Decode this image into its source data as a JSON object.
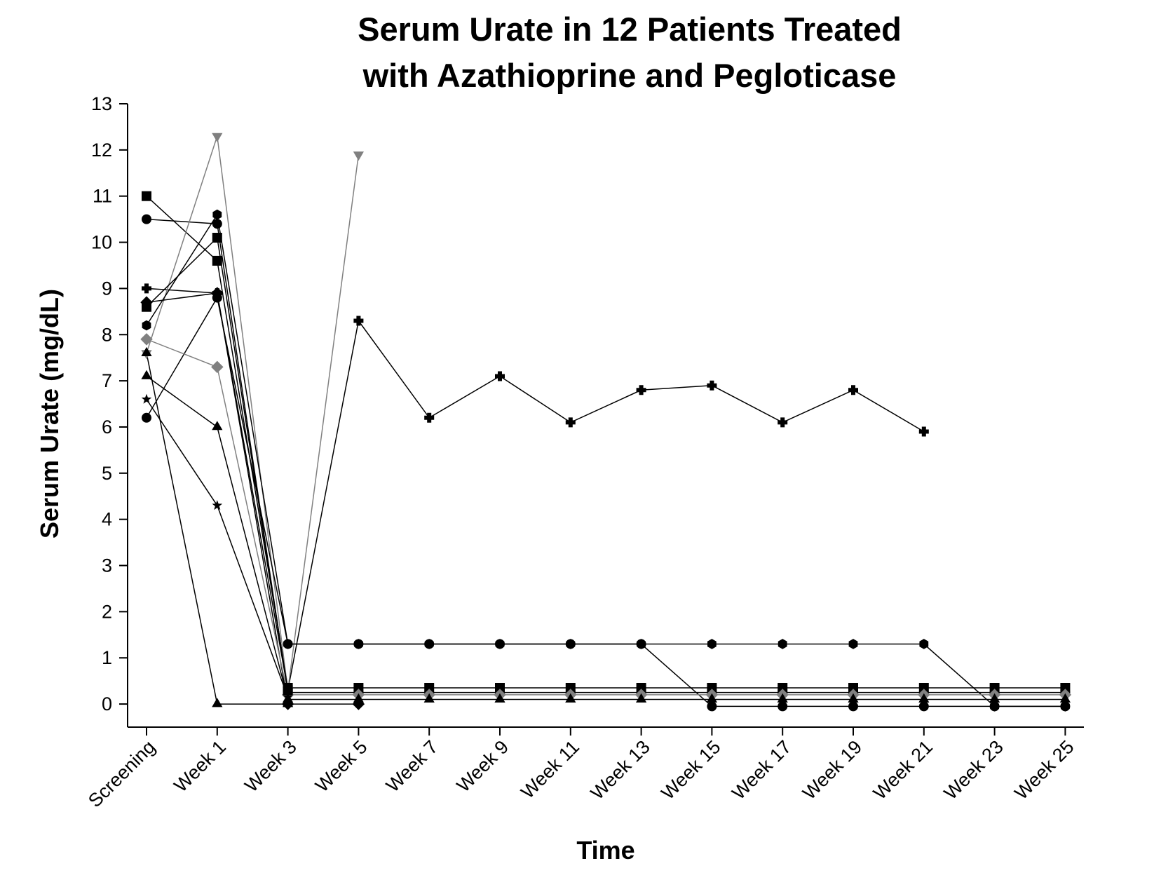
{
  "chart_data": {
    "type": "line",
    "title": [
      "Serum Urate in 12 Patients Treated",
      "with Azathioprine and Pegloticase"
    ],
    "xlabel": "Time",
    "ylabel": "Serum Urate (mg/dL)",
    "categories": [
      "Screening",
      "Week 1",
      "Week 3",
      "Week 5",
      "Week 7",
      "Week 9",
      "Week 11",
      "Week 13",
      "Week 15",
      "Week 17",
      "Week 19",
      "Week 21",
      "Week 23",
      "Week 25"
    ],
    "ylim": [
      -0.5,
      13
    ],
    "yticks": [
      0,
      1,
      2,
      3,
      4,
      5,
      6,
      7,
      8,
      9,
      10,
      11,
      12,
      13
    ],
    "grid": false,
    "series": [
      {
        "color": "#000000",
        "marker": "square",
        "values": [
          11,
          9.6,
          0.35,
          0.35,
          0.35,
          0.35,
          0.35,
          0.35,
          0.35,
          0.35,
          0.35,
          0.35,
          0.35,
          0.35
        ]
      },
      {
        "color": "#000000",
        "marker": "circle",
        "values": [
          10.5,
          10.4,
          0.25,
          0.25,
          0.25,
          0.25,
          0.25,
          0.25,
          0.25,
          0.25,
          0.25,
          0.25,
          0.25,
          0.25
        ]
      },
      {
        "color": "#000000",
        "marker": "plus",
        "values": [
          9.0,
          8.9,
          0.3,
          8.3,
          6.2,
          7.1,
          6.1,
          6.8,
          6.9,
          6.1,
          6.8,
          5.9,
          null,
          null
        ]
      },
      {
        "color": "#808080",
        "marker": "triangle-down",
        "values": [
          7.6,
          12.3,
          0.3,
          11.9,
          null,
          null,
          null,
          null,
          null,
          null,
          null,
          null,
          null,
          null
        ]
      },
      {
        "color": "#000000",
        "marker": "circle",
        "values": [
          6.2,
          8.8,
          1.3,
          1.3,
          1.3,
          1.3,
          1.3,
          1.3,
          -0.05,
          -0.05,
          -0.05,
          -0.05,
          -0.05,
          -0.05
        ]
      },
      {
        "color": "#000000",
        "marker": "hexagon",
        "values": [
          8.2,
          10.6,
          1.3,
          1.3,
          1.3,
          1.3,
          1.3,
          1.3,
          1.3,
          1.3,
          1.3,
          1.3,
          -0.05,
          -0.05
        ]
      },
      {
        "color": "#000000",
        "marker": "diamond",
        "values": [
          8.7,
          8.9,
          0,
          0,
          null,
          null,
          null,
          null,
          null,
          null,
          null,
          null,
          null,
          null
        ]
      },
      {
        "color": "#808080",
        "marker": "diamond",
        "values": [
          7.9,
          7.3,
          0.2,
          0.2,
          0.2,
          0.2,
          0.2,
          0.2,
          0.2,
          0.2,
          0.2,
          0.2,
          0.2,
          0.2
        ]
      },
      {
        "color": "#000000",
        "marker": "triangle",
        "values": [
          7.1,
          6.0,
          0.1,
          0.1,
          0.1,
          0.1,
          0.1,
          0.1,
          0.1,
          0.1,
          0.1,
          0.1,
          0.1,
          0.1
        ]
      },
      {
        "color": "#000000",
        "marker": "triangle",
        "values": [
          7.6,
          0,
          0,
          null,
          null,
          null,
          null,
          null,
          null,
          null,
          null,
          null,
          null,
          null
        ]
      },
      {
        "color": "#000000",
        "marker": "star",
        "values": [
          6.6,
          4.3,
          0.15,
          null,
          null,
          null,
          null,
          null,
          null,
          null,
          null,
          null,
          null,
          null
        ]
      },
      {
        "color": "#000000",
        "marker": "square",
        "values": [
          8.6,
          10.1,
          0.3,
          null,
          null,
          null,
          null,
          null,
          null,
          null,
          null,
          null,
          null,
          null
        ]
      }
    ]
  }
}
